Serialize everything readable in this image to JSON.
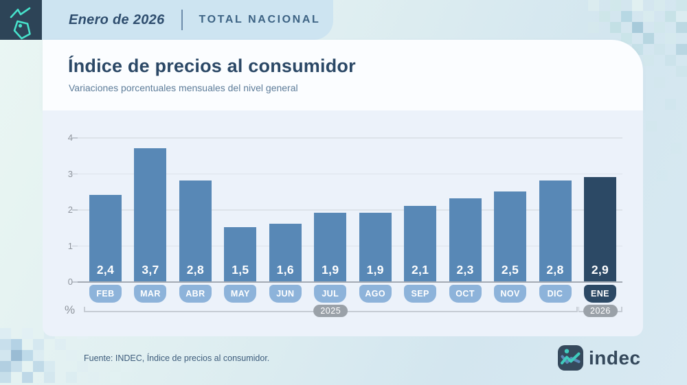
{
  "header": {
    "period": "Enero de 2026",
    "scope": "TOTAL NACIONAL"
  },
  "title": "Índice de precios al consumidor",
  "subtitle": "Variaciones porcentuales mensuales del nivel general",
  "chart_data": {
    "type": "bar",
    "categories": [
      "FEB",
      "MAR",
      "ABR",
      "MAY",
      "JUN",
      "JUL",
      "AGO",
      "SEP",
      "OCT",
      "NOV",
      "DIC",
      "ENE"
    ],
    "values": [
      2.4,
      3.7,
      2.8,
      1.5,
      1.6,
      1.9,
      1.9,
      2.1,
      2.3,
      2.5,
      2.8,
      2.9
    ],
    "value_labels": [
      "2,4",
      "3,7",
      "2,8",
      "1,5",
      "1,6",
      "1,9",
      "1,9",
      "2,1",
      "2,3",
      "2,5",
      "2,8",
      "2,9"
    ],
    "highlight_index": 11,
    "title": "Índice de precios al consumidor",
    "subtitle": "Variaciones porcentuales mensuales del nivel general",
    "xlabel": "",
    "ylabel": "%",
    "ylim": [
      0,
      4
    ],
    "yticks": [
      0,
      1,
      2,
      3,
      4
    ],
    "grid": true,
    "legend": false,
    "year_groups": [
      {
        "label": "2025",
        "from": 0,
        "to": 10
      },
      {
        "label": "2026",
        "from": 11,
        "to": 11
      }
    ],
    "colors": {
      "bar": "#5888b6",
      "bar_highlight": "#2c4965",
      "month_pill": "#8db3da",
      "month_pill_highlight": "#2c4965"
    }
  },
  "footer": {
    "source": "Fuente: INDEC, Índice de precios al consumidor.",
    "brand": "indec"
  }
}
